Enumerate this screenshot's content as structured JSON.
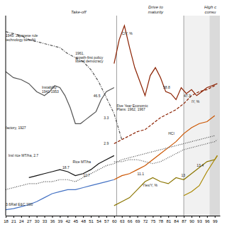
{
  "chart_data": {
    "type": "line",
    "xlim": [
      1918,
      2001
    ],
    "ylim": [
      0,
      100
    ],
    "xticks": [
      {
        "value": 1918,
        "label": "18"
      },
      {
        "value": 1921,
        "label": "21"
      },
      {
        "value": 1924,
        "label": "24"
      },
      {
        "value": 1927,
        "label": "27"
      },
      {
        "value": 1930,
        "label": "30"
      },
      {
        "value": 1933,
        "label": "33"
      },
      {
        "value": 1936,
        "label": "36"
      },
      {
        "value": 1939,
        "label": "39"
      },
      {
        "value": 1942,
        "label": "42"
      },
      {
        "value": 1945,
        "label": "45"
      },
      {
        "value": 1948,
        "label": "48"
      },
      {
        "value": 1951,
        "label": "51"
      },
      {
        "value": 1954,
        "label": "54"
      },
      {
        "value": 1957,
        "label": "57"
      },
      {
        "value": 1960,
        "label": "60"
      },
      {
        "value": 1963,
        "label": "63"
      },
      {
        "value": 1966,
        "label": "66"
      },
      {
        "value": 1969,
        "label": "69"
      },
      {
        "value": 1972,
        "label": "72"
      },
      {
        "value": 1975,
        "label": "75"
      },
      {
        "value": 1978,
        "label": "78"
      },
      {
        "value": 1981,
        "label": "81"
      },
      {
        "value": 1984,
        "label": "84"
      },
      {
        "value": 1987,
        "label": "87"
      },
      {
        "value": 1990,
        "label": "90"
      },
      {
        "value": 1993,
        "label": "93"
      },
      {
        "value": 1996,
        "label": "96"
      },
      {
        "value": 1999,
        "label": "99"
      }
    ],
    "tick_labels": "x",
    "grid": false,
    "shaded": [
      {
        "from": 1997,
        "to": 2001
      },
      {
        "from": 1987,
        "to": 1997
      }
    ],
    "vlines": [
      1961,
      1987
    ],
    "series": [
      {
        "x": [
          1918,
          1921,
          1924,
          1927,
          1930,
          1933,
          1936,
          1939,
          1942,
          1945,
          1948,
          1951,
          1954,
          1957,
          1960,
          1963
        ],
        "values": [
          92,
          91,
          90,
          88,
          87,
          86,
          85,
          84,
          81,
          79,
          77,
          73,
          67,
          59,
          51,
          38
        ],
        "color": "#555555",
        "line_style": "dashdot"
      },
      {
        "x": [
          1918,
          1921,
          1924,
          1927,
          1930,
          1933,
          1935,
          1937,
          1939,
          1941,
          1943,
          1945,
          1947,
          1949,
          1951,
          1953,
          1955,
          1957,
          1960
        ],
        "values": [
          72,
          69,
          68,
          66,
          62,
          60,
          62,
          65,
          64,
          60,
          54,
          46,
          46,
          48,
          50,
          52,
          58,
          62,
          64
        ],
        "color": "#555555",
        "line_style": "solid"
      },
      {
        "x": [
          1960,
          1962,
          1964,
          1966,
          1968,
          1970,
          1972,
          1974,
          1976,
          1978,
          1980,
          1982,
          1984,
          1986,
          1988,
          1990,
          1992,
          1994,
          1996,
          1998,
          2000
        ],
        "values": [
          76,
          88,
          95,
          84,
          74,
          67,
          60,
          70,
          74,
          69,
          62,
          61,
          58,
          64,
          61,
          63,
          60,
          62,
          64,
          65,
          66
        ],
        "color": "#8B2000",
        "line_style": "solid"
      },
      {
        "x": [
          1960,
          1963,
          1966,
          1969,
          1972,
          1975,
          1978,
          1981,
          1984,
          1987,
          1990,
          1993,
          1996,
          1999
        ],
        "values": [
          36,
          38,
          40,
          42,
          43,
          46,
          49,
          51,
          53,
          56,
          60,
          62,
          63,
          65
        ],
        "color": "#8B2000",
        "line_style": "dashed"
      },
      {
        "x": [
          1960,
          1963,
          1966,
          1969,
          1972,
          1975,
          1978,
          1981,
          1984,
          1987,
          1990,
          1993,
          1996,
          1999
        ],
        "values": [
          18,
          20,
          21,
          23,
          25,
          28,
          31,
          34,
          37,
          41,
          44,
          46,
          47,
          50
        ],
        "color": "#cc5500",
        "line_style": "solid"
      },
      {
        "x": [
          1960,
          1963,
          1966,
          1969,
          1972,
          1975,
          1978,
          1981,
          1984,
          1987,
          1990,
          1993,
          1996,
          1999,
          2000
        ],
        "values": [
          5,
          7,
          9,
          13,
          17,
          19,
          17,
          16,
          19,
          18,
          21,
          24,
          27,
          28,
          30
        ],
        "color": "#8B7500",
        "line_style": "solid"
      },
      {
        "x": [
          1918,
          1921,
          1924,
          1927,
          1930,
          1933,
          1936,
          1939,
          1942,
          1945,
          1948,
          1951,
          1954,
          1957,
          1960,
          1963,
          1966,
          1969,
          1972,
          1975,
          1978,
          1981,
          1984,
          1987,
          1990,
          1993,
          1996,
          1999
        ],
        "values": [
          13,
          14,
          15,
          16,
          16,
          17,
          17,
          18,
          18,
          17,
          19,
          21,
          23,
          25,
          26,
          28,
          29,
          30,
          31,
          32,
          33,
          34,
          35,
          36,
          37,
          38,
          39,
          40
        ],
        "color": "#444444",
        "line_style": "dotted"
      },
      {
        "x": [
          1918,
          1921,
          1924,
          1927,
          1930,
          1933,
          1936,
          1939,
          1942,
          1945,
          1948,
          1951,
          1954,
          1957,
          1960
        ],
        "values": [
          3,
          3.5,
          4.5,
          5.5,
          7,
          9,
          11,
          12,
          13,
          13,
          14,
          15,
          16,
          17,
          18
        ],
        "color": "#4472c4",
        "line_style": "solid"
      },
      {
        "x": [
          1960,
          1963,
          1966,
          1969,
          1972,
          1975,
          1978,
          1981,
          1984,
          1987,
          1990,
          1993,
          1996,
          1999,
          2000
        ],
        "values": [
          27,
          27,
          28,
          28,
          27,
          26,
          27,
          29,
          31,
          33,
          34,
          35,
          36,
          37,
          38
        ],
        "color": "#555555",
        "line_style": "dotted"
      },
      {
        "x": [
          1927,
          1930,
          1933,
          1936,
          1939,
          1942,
          1945,
          1948,
          1951,
          1954,
          1957,
          1960
        ],
        "values": [
          19,
          20,
          21,
          22,
          23,
          22,
          20,
          21,
          23,
          26,
          28,
          30
        ],
        "color": "#111111",
        "line_style": "solid"
      },
      {
        "x": [
          1987,
          1990,
          1993,
          1996,
          1999,
          2000
        ],
        "values": [
          10,
          12,
          15,
          22,
          28,
          30
        ],
        "color": "#aa8800",
        "line_style": "solid"
      }
    ],
    "stage_labels": [
      "Take-off",
      "Drive to\nmaturity",
      "High c\nconsu"
    ],
    "annotations": [
      {
        "text": "1945: Japanese rule\ntechnology benefit)",
        "x": 1918,
        "y": 89
      },
      {
        "text": "1961,\ngrowth-first policy\nliberal democracy",
        "x": 1945,
        "y": 79
      },
      {
        "text": "Instability\n1941-1953",
        "x": 1932,
        "y": 63
      },
      {
        "text": "factory, 1927",
        "x": 1918,
        "y": 44
      },
      {
        "text": "Insl rice MT/ha, 2.7",
        "x": 1919,
        "y": 30
      },
      {
        "text": "Rice  MT/ha",
        "x": 1944,
        "y": 27
      },
      {
        "text": "Rail E&C '000",
        "x": 1920,
        "y": 5.5
      },
      {
        "text": "46.5",
        "x": 1952,
        "y": 60
      },
      {
        "text": "3.3",
        "x": 1956,
        "y": 49
      },
      {
        "text": "2.9",
        "x": 1956,
        "y": 36
      },
      {
        "text": "18.7",
        "x": 1940,
        "y": 24
      },
      {
        "text": "12.7",
        "x": 1948,
        "y": 20
      },
      {
        "text": "3.6",
        "x": 1918,
        "y": 5.5
      },
      {
        "text": "Five Year Economic\nPlans: 1962, 1967",
        "x": 1961,
        "y": 54
      },
      {
        "text": "CIY, %",
        "x": 1963,
        "y": 91
      },
      {
        "text": "58.8",
        "x": 1979,
        "y": 64
      },
      {
        "text": "47.3",
        "x": 1987,
        "y": 60
      },
      {
        "text": "IY, %",
        "x": 1990,
        "y": 57
      },
      {
        "text": "HCI",
        "x": 1981,
        "y": 41
      },
      {
        "text": "13",
        "x": 1986,
        "y": 20
      },
      {
        "text": "13.4",
        "x": 1992,
        "y": 25
      },
      {
        "text": "Ylex/Y, %",
        "x": 1971,
        "y": 15
      },
      {
        "text": "11.1",
        "x": 1969,
        "y": 21
      }
    ]
  }
}
